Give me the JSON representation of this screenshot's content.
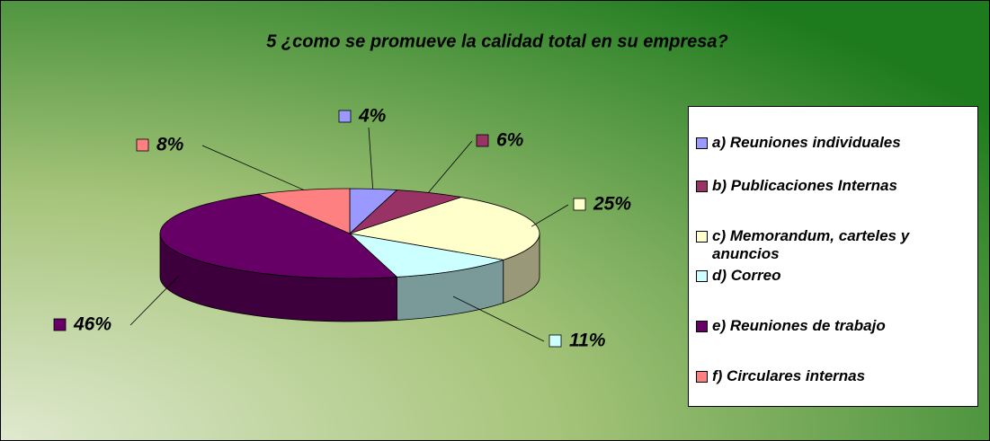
{
  "chart_data": {
    "type": "pie",
    "title": "5 ¿como se promueve la calidad total en su empresa?",
    "categories": [
      "a) Reuniones individuales",
      "b) Publicaciones Internas",
      "c) Memorandum, carteles y anuncios",
      "d) Correo",
      "e) Reuniones de trabajo",
      "f) Circulares internas"
    ],
    "values": [
      4,
      6,
      25,
      11,
      46,
      8
    ],
    "value_labels": [
      "4%",
      "6%",
      "25%",
      "11%",
      "46%",
      "8%"
    ],
    "colors": [
      "#9999ff",
      "#993366",
      "#ffffcc",
      "#ccffff",
      "#660066",
      "#ff8080"
    ],
    "legend": "right"
  }
}
